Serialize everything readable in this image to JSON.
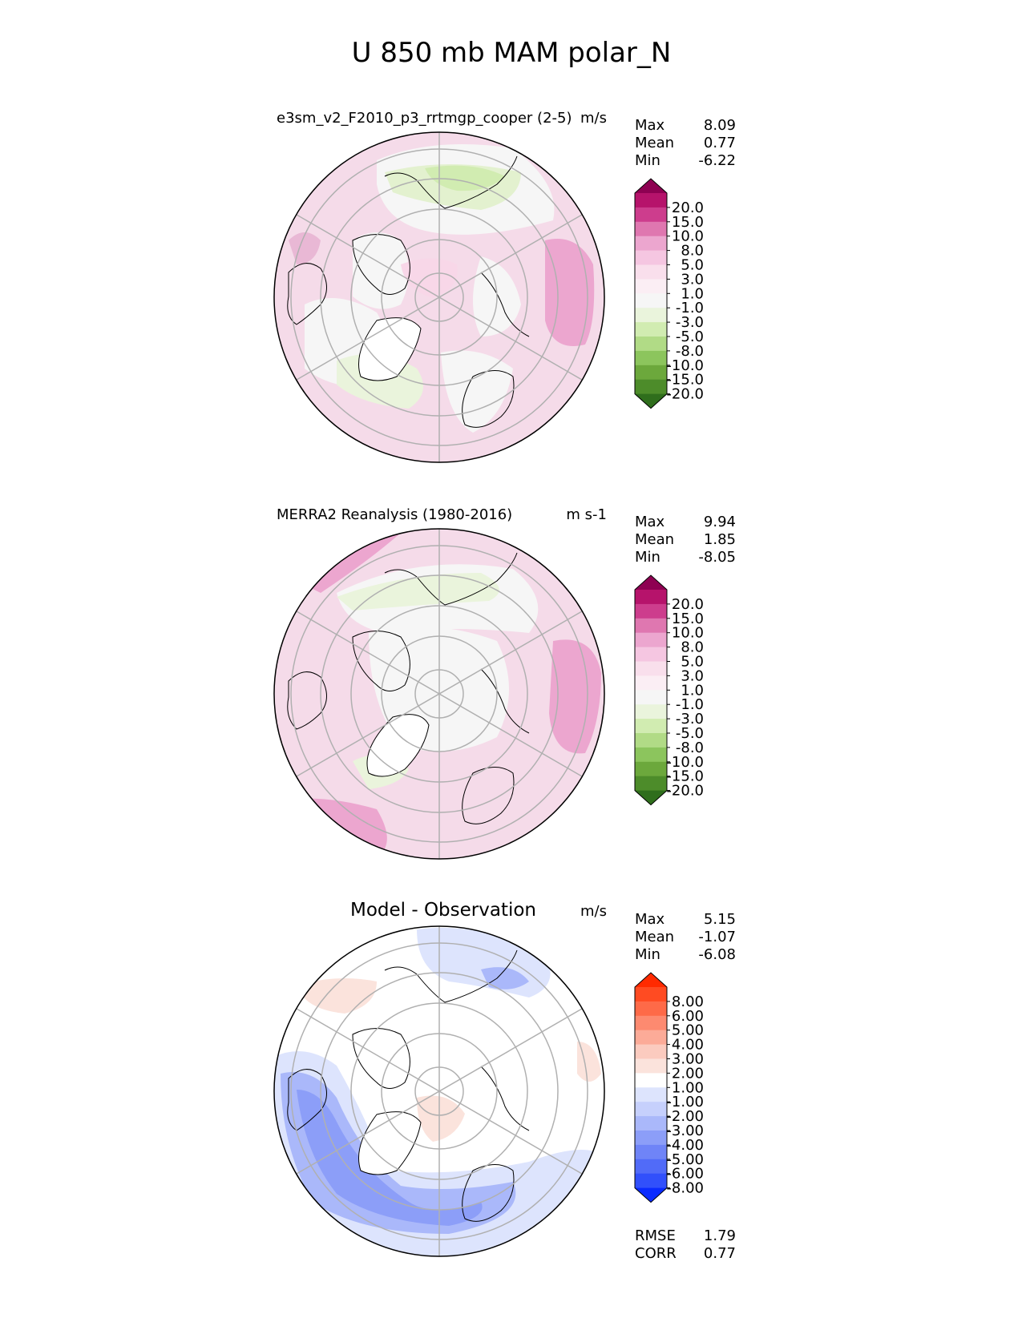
{
  "title": "U 850 mb MAM polar_N",
  "colors": {
    "land_outline": "#000000",
    "grid": "#b0b0b0",
    "pink_dark": "#8e0152",
    "pink_mid": "#e7a6cf",
    "green_dark": "#276419",
    "blue_dark": "#0029ff",
    "red_dark": "#ff2200"
  },
  "chart_data": [
    {
      "type": "heatmap",
      "projection": "north-polar-stereographic",
      "title": "e3sm_v2_F2010_p3_rrtmgp_cooper (2-5)",
      "units": "m/s",
      "stats": [
        {
          "label": "Max",
          "value": "8.09"
        },
        {
          "label": "Mean",
          "value": "0.77"
        },
        {
          "label": "Min",
          "value": "-6.22"
        }
      ],
      "colorbar": {
        "extend": "both",
        "ticks": [
          "20.0",
          "15.0",
          "10.0",
          "8.0",
          "5.0",
          "3.0",
          "1.0",
          "-1.0",
          "-3.0",
          "-5.0",
          "-8.0",
          "-10.0",
          "-15.0",
          "-20.0"
        ],
        "colors": [
          "#8e0152",
          "#b6136b",
          "#cd3d8d",
          "#df77b0",
          "#eca6cf",
          "#f5c6e1",
          "#f9dfec",
          "#fbeef4",
          "#f6f6f6",
          "#eaf4dc",
          "#d1ecb1",
          "#b1db86",
          "#8cc55d",
          "#6ca83c",
          "#4d8c2a",
          "#2f6e1c"
        ]
      },
      "max": 8.09,
      "mean": 0.77,
      "min": -6.22
    },
    {
      "type": "heatmap",
      "projection": "north-polar-stereographic",
      "title": "MERRA2 Reanalysis (1980-2016)",
      "units": "m s-1",
      "stats": [
        {
          "label": "Max",
          "value": "9.94"
        },
        {
          "label": "Mean",
          "value": "1.85"
        },
        {
          "label": "Min",
          "value": "-8.05"
        }
      ],
      "colorbar": {
        "extend": "both",
        "ticks": [
          "20.0",
          "15.0",
          "10.0",
          "8.0",
          "5.0",
          "3.0",
          "1.0",
          "-1.0",
          "-3.0",
          "-5.0",
          "-8.0",
          "-10.0",
          "-15.0",
          "-20.0"
        ],
        "colors": [
          "#8e0152",
          "#b6136b",
          "#cd3d8d",
          "#df77b0",
          "#eca6cf",
          "#f5c6e1",
          "#f9dfec",
          "#fbeef4",
          "#f6f6f6",
          "#eaf4dc",
          "#d1ecb1",
          "#b1db86",
          "#8cc55d",
          "#6ca83c",
          "#4d8c2a",
          "#2f6e1c"
        ]
      },
      "max": 9.94,
      "mean": 1.85,
      "min": -8.05
    },
    {
      "type": "heatmap",
      "projection": "north-polar-stereographic",
      "title": "Model - Observation",
      "units": "m/s",
      "stats": [
        {
          "label": "Max",
          "value": "5.15"
        },
        {
          "label": "Mean",
          "value": "-1.07"
        },
        {
          "label": "Min",
          "value": "-6.08"
        }
      ],
      "extra_stats": [
        {
          "label": "RMSE",
          "value": "1.79"
        },
        {
          "label": "CORR",
          "value": "0.77"
        }
      ],
      "colorbar": {
        "extend": "both",
        "ticks": [
          "8.00",
          "6.00",
          "5.00",
          "4.00",
          "3.00",
          "2.00",
          "1.00",
          "-1.00",
          "-2.00",
          "-3.00",
          "-4.00",
          "-5.00",
          "-6.00",
          "-8.00"
        ],
        "colors": [
          "#ff2a00",
          "#ff4b22",
          "#fe6a48",
          "#fd8a70",
          "#fcab98",
          "#fbcbbf",
          "#fbe3dc",
          "#ffffff",
          "#dde4fd",
          "#c6d0fc",
          "#aab8fa",
          "#8c9ef8",
          "#6f84f7",
          "#516bf8",
          "#3150fb",
          "#0a2bff"
        ]
      },
      "max": 5.15,
      "mean": -1.07,
      "min": -6.08,
      "rmse": 1.79,
      "corr": 0.77
    }
  ]
}
